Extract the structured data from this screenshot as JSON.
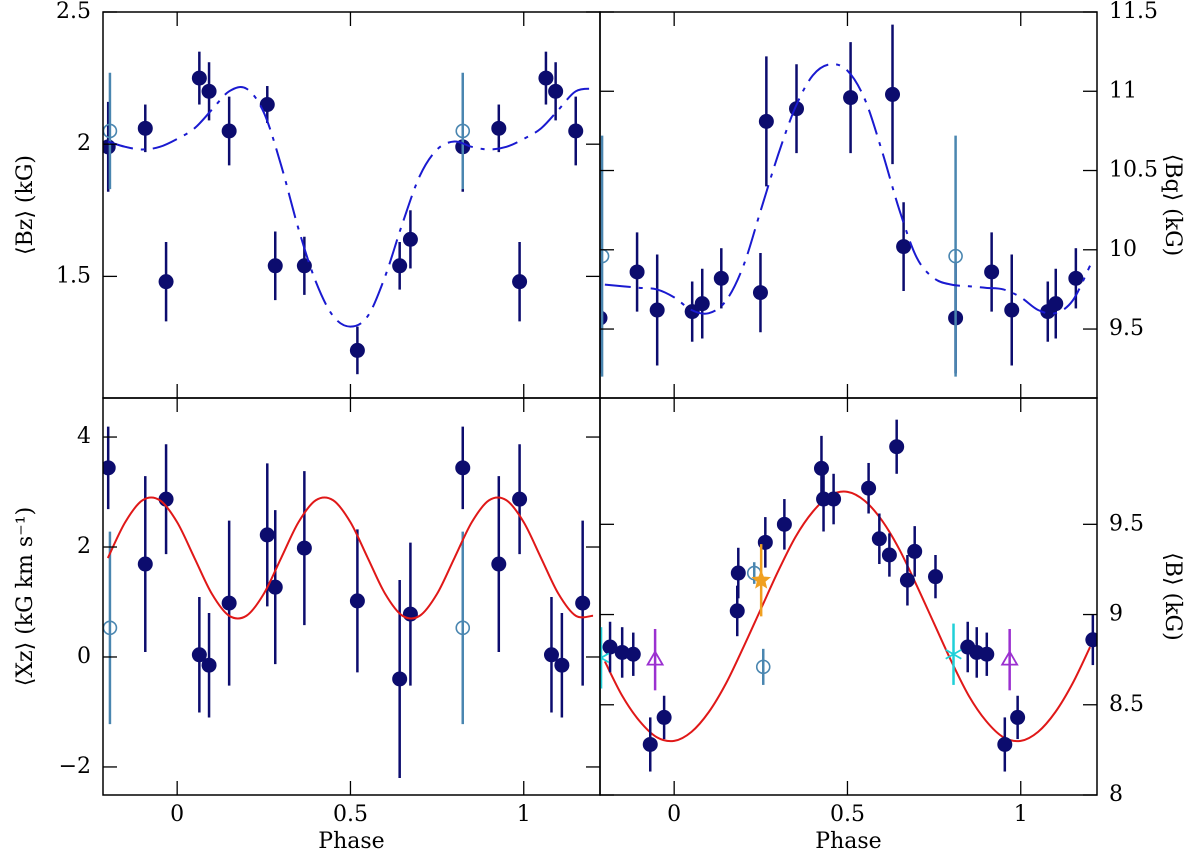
{
  "chart_data": [
    {
      "type": "scatter",
      "yaxis_side": "left",
      "ylabel": "⟨Bz⟩ (kG)",
      "xtick_labels": false,
      "xlim": [
        -0.214,
        1.22
      ],
      "xticks": [
        0,
        0.5,
        1
      ],
      "ylim": [
        1.04,
        2.5
      ],
      "yticks": [
        1.5,
        2,
        2.5
      ],
      "series": [
        {
          "marker": "filled-circle",
          "color": "#0c0c6e",
          "x": [
            -0.199,
            -0.092,
            -0.032,
            0.064,
            0.092,
            0.15,
            0.26,
            0.283,
            0.367,
            0.52,
            0.642,
            0.673,
            0.824,
            0.928,
            0.988,
            1.064,
            1.092,
            1.15
          ],
          "values": [
            1.99,
            2.06,
            1.48,
            2.25,
            2.2,
            2.05,
            2.15,
            1.54,
            1.54,
            1.22,
            1.54,
            1.64,
            1.99,
            2.06,
            1.48,
            2.25,
            2.2,
            2.05
          ],
          "errors": [
            0.17,
            0.09,
            0.15,
            0.1,
            0.11,
            0.13,
            0.07,
            0.13,
            0.11,
            0.09,
            0.09,
            0.11,
            0.17,
            0.09,
            0.15,
            0.1,
            0.11,
            0.13
          ]
        },
        {
          "marker": "open-circle",
          "color": "#4a86b0",
          "x": [
            -0.194,
            0.824
          ],
          "values": [
            2.05,
            2.05
          ],
          "errors": [
            0.22,
            0.22
          ]
        },
        {
          "marker": "line",
          "dash": "dashed",
          "color": "#1a1ad0",
          "x": [
            -0.2,
            -0.15,
            -0.1,
            -0.05,
            0,
            0.05,
            0.1,
            0.15,
            0.2,
            0.25,
            0.3,
            0.35,
            0.4,
            0.45,
            0.5,
            0.55,
            0.6,
            0.65,
            0.7,
            0.75,
            0.8,
            0.85,
            0.9,
            0.95,
            1,
            1.05,
            1.1,
            1.15,
            1.2
          ],
          "values": [
            2.01,
            1.99,
            1.98,
            1.99,
            2.02,
            2.06,
            2.13,
            2.2,
            2.21,
            2.12,
            1.92,
            1.68,
            1.48,
            1.35,
            1.31,
            1.35,
            1.5,
            1.7,
            1.88,
            1.98,
            2.01,
            1.99,
            1.98,
            1.99,
            2.02,
            2.06,
            2.13,
            2.2,
            2.21
          ]
        }
      ]
    },
    {
      "type": "scatter",
      "yaxis_side": "right",
      "ylabel": "⟨Bq⟩ (kG)",
      "xtick_labels": false,
      "xlim": [
        -0.214,
        1.22
      ],
      "xticks": [
        0,
        0.5,
        1
      ],
      "ylim": [
        9.065,
        11.5
      ],
      "yticks": [
        9.5,
        10,
        10.5,
        11,
        11.5
      ],
      "series": [
        {
          "marker": "filled-circle",
          "color": "#0c0c6e",
          "x": [
            -0.214,
            -0.107,
            -0.049,
            0.052,
            0.081,
            0.136,
            0.249,
            0.266,
            0.353,
            0.509,
            0.63,
            0.662,
            0.812,
            0.916,
            0.974,
            1.078,
            1.101,
            1.159
          ],
          "values": [
            9.57,
            9.86,
            9.62,
            9.61,
            9.66,
            9.82,
            9.73,
            10.81,
            10.89,
            10.96,
            10.98,
            10.02,
            9.57,
            9.86,
            9.62,
            9.61,
            9.66,
            9.82
          ],
          "errors": [
            0.35,
            0.25,
            0.35,
            0.19,
            0.22,
            0.19,
            0.25,
            0.41,
            0.28,
            0.35,
            0.44,
            0.28,
            0.35,
            0.25,
            0.35,
            0.19,
            0.22,
            0.19
          ]
        },
        {
          "marker": "open-circle",
          "color": "#4a86b0",
          "x": [
            -0.208,
            0.812
          ],
          "values": [
            9.96,
            9.96
          ],
          "errors": [
            0.76,
            0.76
          ]
        },
        {
          "marker": "line",
          "dash": "dashed",
          "color": "#1a1ad0",
          "x": [
            -0.2,
            -0.15,
            -0.1,
            -0.05,
            0,
            0.05,
            0.1,
            0.15,
            0.2,
            0.25,
            0.3,
            0.35,
            0.4,
            0.45,
            0.5,
            0.55,
            0.6,
            0.65,
            0.7,
            0.75,
            0.8,
            0.85,
            0.9,
            0.95,
            1,
            1.05,
            1.1,
            1.15,
            1.2
          ],
          "values": [
            9.78,
            9.77,
            9.76,
            9.75,
            9.7,
            9.62,
            9.6,
            9.68,
            9.9,
            10.25,
            10.6,
            10.9,
            11.1,
            11.17,
            11.13,
            10.95,
            10.62,
            10.25,
            9.95,
            9.82,
            9.78,
            9.77,
            9.76,
            9.75,
            9.7,
            9.62,
            9.6,
            9.68,
            9.9
          ]
        }
      ]
    },
    {
      "type": "scatter",
      "yaxis_side": "left",
      "ylabel": "⟨Xz⟩ (kG km s⁻¹)",
      "xlabel": "Phase",
      "xtick_labels": true,
      "xlim": [
        -0.214,
        1.22
      ],
      "xticks": [
        0,
        0.5,
        1
      ],
      "ylim": [
        -2.51,
        4.71
      ],
      "yticks": [
        {
          "value": -2,
          "label": "−2"
        },
        0,
        2,
        4
      ],
      "series": [
        {
          "marker": "filled-circle",
          "color": "#0c0c6e",
          "x": [
            -0.199,
            -0.092,
            -0.032,
            0.064,
            0.092,
            0.15,
            0.26,
            0.283,
            0.367,
            0.52,
            0.642,
            0.673,
            0.824,
            0.928,
            0.988,
            1.08,
            1.11,
            1.17
          ],
          "values": [
            3.44,
            1.69,
            2.87,
            0.04,
            -0.15,
            0.98,
            2.22,
            1.27,
            1.98,
            1.02,
            -0.4,
            0.78,
            3.44,
            1.69,
            2.87,
            0.04,
            -0.15,
            0.98
          ],
          "errors": [
            0.75,
            1.6,
            1.0,
            1.05,
            0.95,
            1.5,
            1.3,
            1.4,
            1.4,
            1.3,
            1.8,
            1.3,
            0.75,
            1.6,
            1.0,
            1.05,
            0.95,
            1.5
          ]
        },
        {
          "marker": "open-circle",
          "color": "#4a86b0",
          "x": [
            -0.194,
            0.824
          ],
          "values": [
            0.53,
            0.53
          ],
          "errors": [
            1.75,
            1.75
          ]
        },
        {
          "marker": "line",
          "dash": "solid",
          "color": "#e01818",
          "x": [
            -0.2,
            -0.15,
            -0.1,
            -0.05,
            0,
            0.05,
            0.1,
            0.15,
            0.2,
            0.25,
            0.3,
            0.35,
            0.4,
            0.45,
            0.5,
            0.55,
            0.6,
            0.65,
            0.7,
            0.75,
            0.8,
            0.85,
            0.9,
            0.95,
            1,
            1.05,
            1.1,
            1.15,
            1.2
          ],
          "values": [
            1.8,
            2.45,
            2.85,
            2.85,
            2.45,
            1.8,
            1.15,
            0.75,
            0.75,
            1.15,
            1.8,
            2.45,
            2.85,
            2.85,
            2.45,
            1.8,
            1.15,
            0.75,
            0.75,
            1.15,
            1.8,
            2.45,
            2.85,
            2.85,
            2.45,
            1.8,
            1.15,
            0.75,
            0.75
          ]
        }
      ]
    },
    {
      "type": "scatter",
      "yaxis_side": "right",
      "ylabel": "⟨B⟩ (kG)",
      "xlabel": "Phase",
      "xtick_labels": true,
      "xlim": [
        -0.214,
        1.22
      ],
      "xticks": [
        0,
        0.5,
        1
      ],
      "ylim": [
        8,
        10.2
      ],
      "yticks": [
        8,
        8.5,
        9,
        9.5
      ],
      "series": [
        {
          "marker": "line",
          "dash": "solid",
          "color": "#e01818",
          "x": [
            -0.2,
            -0.15,
            -0.1,
            -0.05,
            0,
            0.05,
            0.1,
            0.15,
            0.2,
            0.25,
            0.3,
            0.35,
            0.4,
            0.45,
            0.5,
            0.55,
            0.6,
            0.65,
            0.7,
            0.75,
            0.8,
            0.85,
            0.9,
            0.95,
            1,
            1.05,
            1.1,
            1.15,
            1.2
          ],
          "values": [
            8.74,
            8.55,
            8.41,
            8.32,
            8.3,
            8.35,
            8.46,
            8.62,
            8.82,
            9.03,
            9.24,
            9.43,
            9.57,
            9.66,
            9.68,
            9.63,
            9.52,
            9.36,
            9.16,
            8.95,
            8.74,
            8.55,
            8.41,
            8.32,
            8.3,
            8.35,
            8.46,
            8.62,
            8.82
          ]
        },
        {
          "marker": "filled-circle",
          "color": "#0c0c6e",
          "x": [
            -0.185,
            -0.15,
            -0.118,
            -0.069,
            -0.029,
            0.182,
            0.185,
            0.263,
            0.318,
            0.425,
            0.431,
            0.46,
            0.561,
            0.592,
            0.621,
            0.642,
            0.673,
            0.694,
            0.754,
            0.847,
            0.873,
            0.902,
            0.954,
            0.991,
            1.208
          ],
          "values": [
            8.82,
            8.79,
            8.78,
            8.28,
            8.43,
            9.02,
            9.23,
            9.4,
            9.5,
            9.81,
            9.64,
            9.64,
            9.7,
            9.42,
            9.33,
            9.93,
            9.19,
            9.35,
            9.21,
            8.82,
            8.79,
            8.78,
            8.28,
            8.43,
            8.86
          ],
          "errors": [
            0.14,
            0.14,
            0.12,
            0.15,
            0.12,
            0.14,
            0.14,
            0.14,
            0.14,
            0.18,
            0.18,
            0.14,
            0.14,
            0.14,
            0.12,
            0.15,
            0.14,
            0.14,
            0.12,
            0.14,
            0.14,
            0.12,
            0.15,
            0.12,
            0.14
          ]
        },
        {
          "marker": "open-circle",
          "color": "#4a86b0",
          "x": [
            0.231,
            0.257
          ],
          "values": [
            9.23,
            8.71
          ],
          "errors": [
            0.06,
            0.1
          ]
        },
        {
          "marker": "open-triangle",
          "color": "#9b30d0",
          "x": [
            -0.055,
            0.968
          ],
          "values": [
            8.75,
            8.75
          ],
          "errors": [
            0.17,
            0.17
          ]
        },
        {
          "marker": "star",
          "color": "#f0a020",
          "x": [
            0.251
          ],
          "values": [
            9.19
          ],
          "errors": [
            0.2
          ]
        },
        {
          "marker": "asterisk",
          "color": "#20d0d8",
          "x": [
            -0.211,
            0.806
          ],
          "values": [
            8.76,
            8.78
          ],
          "errors": [
            0.17,
            0.17
          ]
        }
      ]
    }
  ]
}
